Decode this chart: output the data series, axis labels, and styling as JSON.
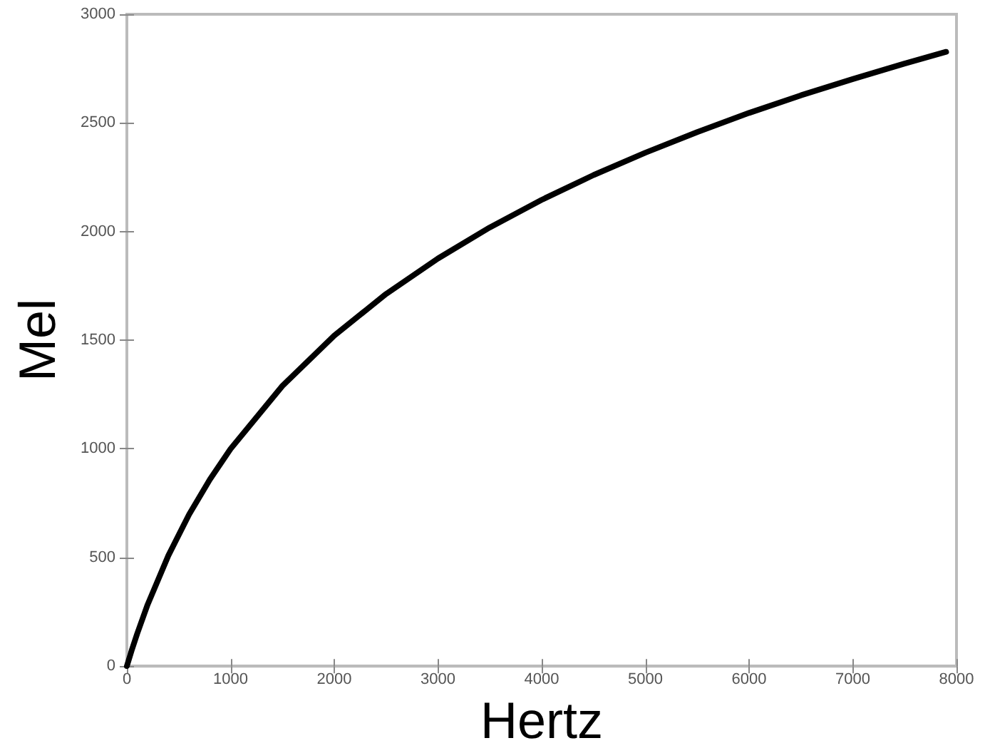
{
  "chart_data": {
    "type": "line",
    "xlabel": "Hertz",
    "ylabel": "Mel",
    "x": [
      0,
      50,
      100,
      200,
      400,
      600,
      800,
      1000,
      1500,
      2000,
      2500,
      3000,
      3500,
      4000,
      4500,
      5000,
      5500,
      6000,
      6500,
      7000,
      7500,
      7900
    ],
    "series": [
      {
        "color": "#000000",
        "values": [
          0,
          78,
          150,
          283,
          509,
          698,
          859,
          1000,
          1290,
          1521,
          1713,
          1876,
          2019,
          2146,
          2260,
          2363,
          2458,
          2546,
          2627,
          2702,
          2773,
          2827
        ]
      }
    ],
    "xlim": [
      0,
      8000
    ],
    "xticks": [
      0,
      1000,
      2000,
      3000,
      4000,
      5000,
      6000,
      7000,
      8000
    ],
    "ylim": [
      0,
      3000
    ],
    "yticks": [
      0,
      500,
      1000,
      1500,
      2000,
      2500,
      3000
    ],
    "grid": false,
    "marker": "none",
    "line_style": "solid"
  }
}
